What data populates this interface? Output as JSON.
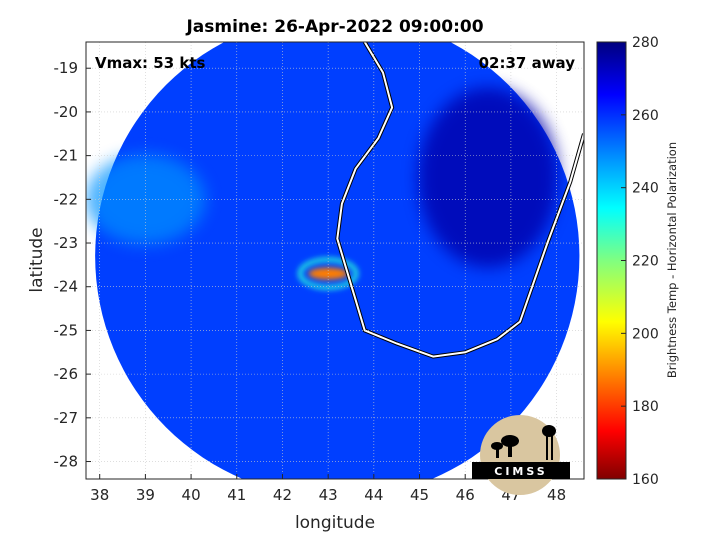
{
  "chart_data": {
    "type": "heatmap",
    "title": "Jasmine: 26-Apr-2022 09:00:00",
    "xlabel": "longitude",
    "ylabel": "latitude",
    "xlim": [
      37.7,
      48.6
    ],
    "ylim": [
      -28.4,
      -18.4
    ],
    "x_ticks": [
      38,
      39,
      40,
      41,
      42,
      43,
      44,
      45,
      46,
      47,
      48
    ],
    "y_ticks": [
      -19,
      -20,
      -21,
      -22,
      -23,
      -24,
      -25,
      -26,
      -27,
      -28
    ],
    "grid": true,
    "annotations": {
      "vmax": "Vmax: 53 kts",
      "time_away": "02:37 away"
    },
    "colorbar": {
      "label": "Brightness Temp - Horizontal Polarization",
      "range": [
        160,
        280
      ],
      "ticks": [
        280,
        260,
        240,
        220,
        200,
        180,
        160
      ],
      "colormap": "jet"
    },
    "swath": {
      "center_lon": 43.2,
      "center_lat": -23.3,
      "radius_deg_lon": 5.3,
      "background_tb": 258
    },
    "features": [
      {
        "name": "storm-core",
        "lon": 43.0,
        "lat": -23.7,
        "min_tb": 188
      },
      {
        "name": "warm-sea-north",
        "lon": 39.0,
        "lat": -22.0,
        "tb": 248
      },
      {
        "name": "cold-land-madagascar",
        "lon": 46.5,
        "lat": -21.5,
        "tb": 275
      }
    ],
    "coastline": [
      [
        43.8,
        -18.4
      ],
      [
        44.2,
        -19.1
      ],
      [
        44.4,
        -19.9
      ],
      [
        44.1,
        -20.6
      ],
      [
        43.6,
        -21.3
      ],
      [
        43.3,
        -22.1
      ],
      [
        43.2,
        -22.9
      ],
      [
        43.4,
        -23.6
      ],
      [
        43.6,
        -24.3
      ],
      [
        43.8,
        -25.0
      ],
      [
        44.5,
        -25.3
      ],
      [
        45.3,
        -25.6
      ],
      [
        46.0,
        -25.5
      ],
      [
        46.7,
        -25.2
      ],
      [
        47.2,
        -24.8
      ],
      [
        47.8,
        -23.0
      ],
      [
        48.3,
        -21.6
      ],
      [
        48.6,
        -20.5
      ]
    ]
  },
  "logo": {
    "text": "CIMSS"
  }
}
